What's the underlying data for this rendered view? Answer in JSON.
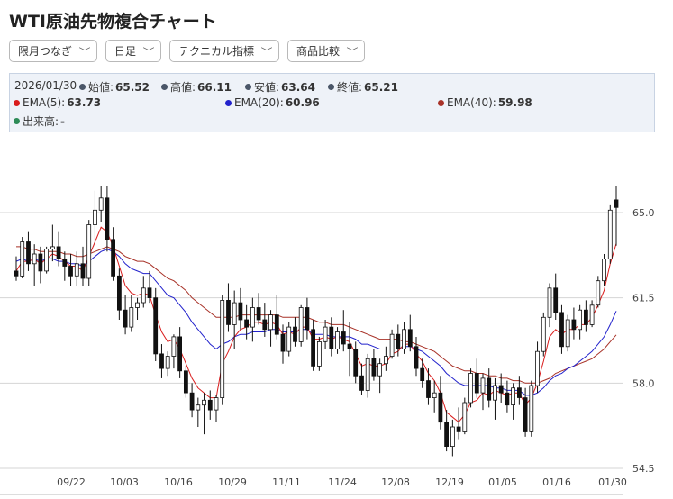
{
  "title": "WTI原油先物複合チャート",
  "toolbar": {
    "period": "限月つなぎ",
    "interval": "日足",
    "technical": "テクニカル指標",
    "compare": "商品比較"
  },
  "info": {
    "date": "2026/01/30",
    "open_label": "始値:",
    "open": "65.52",
    "high_label": "高値:",
    "high": "66.11",
    "low_label": "安値:",
    "low": "63.64",
    "close_label": "終値:",
    "close": "65.21",
    "ema5_label": "EMA(5):",
    "ema5": "63.73",
    "ema20_label": "EMA(20):",
    "ema20": "60.96",
    "ema40_label": "EMA(40):",
    "ema40": "59.98",
    "volume_label": "出来高:",
    "volume": "-"
  },
  "colors": {
    "dot_neutral": "#4a5668",
    "ema5": "#d91c1c",
    "ema20": "#2222cc",
    "ema40": "#a83228",
    "volume": "#2e8b57",
    "candle_up": "#ffffff",
    "candle_down": "#111111"
  },
  "chart_data": {
    "type": "candlestick",
    "y_ticks": [
      "65.0",
      "61.5",
      "58.0",
      "54.5"
    ],
    "y_tick_values": [
      65.0,
      61.5,
      58.0,
      54.5
    ],
    "ylim": [
      54.3,
      68.0
    ],
    "x_ticks": [
      "09/22",
      "10/03",
      "10/16",
      "10/29",
      "11/11",
      "11/24",
      "12/08",
      "12/19",
      "01/05",
      "01/16",
      "01/30"
    ],
    "grid": true,
    "series": [
      {
        "name": "EMA(5)",
        "color": "#d91c1c"
      },
      {
        "name": "EMA(20)",
        "color": "#2222cc"
      },
      {
        "name": "EMA(40)",
        "color": "#a83228"
      }
    ],
    "candles": [
      [
        62.6,
        63.2,
        62.2,
        62.4
      ],
      [
        62.4,
        64.0,
        62.3,
        63.8
      ],
      [
        63.8,
        64.2,
        62.6,
        62.9
      ],
      [
        62.9,
        63.7,
        62.0,
        63.3
      ],
      [
        63.3,
        63.6,
        62.1,
        62.6
      ],
      [
        62.6,
        63.6,
        62.5,
        63.5
      ],
      [
        63.5,
        64.5,
        63.0,
        63.6
      ],
      [
        63.6,
        64.2,
        62.8,
        63.1
      ],
      [
        63.1,
        63.4,
        62.2,
        62.8
      ],
      [
        62.8,
        63.3,
        62.0,
        62.4
      ],
      [
        62.4,
        63.4,
        62.0,
        62.9
      ],
      [
        62.9,
        63.6,
        62.0,
        62.3
      ],
      [
        62.3,
        64.7,
        62.0,
        64.5
      ],
      [
        64.5,
        65.9,
        63.6,
        65.1
      ],
      [
        65.1,
        66.1,
        64.6,
        65.6
      ],
      [
        65.6,
        66.1,
        63.4,
        63.9
      ],
      [
        63.9,
        64.4,
        62.2,
        62.4
      ],
      [
        62.4,
        62.7,
        60.6,
        61.0
      ],
      [
        61.0,
        61.6,
        60.0,
        60.3
      ],
      [
        60.3,
        61.6,
        60.1,
        61.1
      ],
      [
        61.1,
        61.5,
        60.6,
        61.3
      ],
      [
        61.3,
        62.4,
        61.1,
        61.9
      ],
      [
        61.9,
        62.6,
        61.3,
        61.5
      ],
      [
        61.5,
        61.9,
        58.9,
        59.2
      ],
      [
        59.2,
        59.6,
        58.2,
        58.6
      ],
      [
        58.6,
        59.3,
        58.3,
        59.1
      ],
      [
        59.1,
        60.0,
        58.6,
        59.9
      ],
      [
        59.9,
        60.3,
        58.2,
        58.5
      ],
      [
        58.5,
        58.7,
        57.4,
        57.6
      ],
      [
        57.6,
        58.0,
        56.6,
        56.9
      ],
      [
        56.9,
        57.4,
        56.2,
        57.1
      ],
      [
        57.1,
        57.6,
        55.9,
        57.3
      ],
      [
        57.3,
        57.7,
        56.5,
        56.9
      ],
      [
        56.9,
        57.5,
        56.4,
        57.4
      ],
      [
        57.4,
        61.6,
        57.1,
        61.4
      ],
      [
        61.4,
        62.1,
        60.1,
        60.4
      ],
      [
        60.4,
        61.8,
        59.4,
        61.3
      ],
      [
        61.3,
        61.9,
        60.2,
        60.6
      ],
      [
        60.6,
        61.2,
        59.8,
        60.3
      ],
      [
        60.3,
        61.5,
        59.7,
        61.1
      ],
      [
        61.1,
        61.7,
        60.4,
        60.6
      ],
      [
        60.6,
        61.3,
        59.9,
        60.2
      ],
      [
        60.2,
        61.0,
        59.5,
        60.8
      ],
      [
        60.8,
        61.6,
        59.8,
        60.0
      ],
      [
        60.0,
        60.4,
        58.8,
        59.3
      ],
      [
        59.3,
        60.5,
        59.1,
        60.3
      ],
      [
        60.3,
        60.7,
        59.5,
        59.7
      ],
      [
        59.7,
        61.2,
        59.5,
        61.1
      ],
      [
        61.1,
        61.5,
        59.8,
        60.2
      ],
      [
        60.2,
        60.6,
        58.5,
        58.7
      ],
      [
        58.7,
        59.9,
        58.5,
        59.7
      ],
      [
        59.7,
        60.6,
        59.4,
        60.3
      ],
      [
        60.3,
        60.7,
        59.1,
        59.4
      ],
      [
        59.4,
        60.3,
        59.2,
        60.1
      ],
      [
        60.1,
        61.0,
        59.3,
        59.6
      ],
      [
        59.6,
        60.5,
        58.3,
        59.4
      ],
      [
        59.4,
        59.7,
        58.0,
        58.3
      ],
      [
        58.3,
        58.8,
        57.5,
        57.7
      ],
      [
        57.7,
        59.2,
        57.4,
        59.0
      ],
      [
        59.0,
        59.4,
        58.1,
        58.3
      ],
      [
        58.3,
        59.0,
        57.6,
        58.8
      ],
      [
        58.8,
        59.5,
        58.5,
        59.1
      ],
      [
        59.1,
        60.2,
        59.0,
        60.0
      ],
      [
        60.0,
        60.4,
        59.1,
        59.4
      ],
      [
        59.4,
        60.5,
        59.2,
        60.2
      ],
      [
        60.2,
        60.8,
        59.3,
        59.5
      ],
      [
        59.5,
        59.9,
        58.3,
        58.6
      ],
      [
        58.6,
        59.0,
        57.8,
        58.1
      ],
      [
        58.1,
        58.6,
        57.1,
        57.4
      ],
      [
        57.4,
        58.1,
        56.8,
        57.6
      ],
      [
        57.6,
        58.3,
        56.1,
        56.4
      ],
      [
        56.4,
        56.9,
        55.2,
        55.4
      ],
      [
        55.4,
        56.5,
        55.0,
        56.2
      ],
      [
        56.2,
        57.0,
        55.7,
        56.0
      ],
      [
        56.0,
        57.4,
        55.9,
        57.2
      ],
      [
        57.2,
        58.6,
        57.0,
        58.4
      ],
      [
        58.4,
        59.0,
        57.4,
        57.6
      ],
      [
        57.6,
        58.4,
        56.9,
        58.2
      ],
      [
        58.2,
        58.6,
        57.0,
        57.3
      ],
      [
        57.3,
        58.2,
        56.5,
        57.9
      ],
      [
        57.9,
        58.4,
        57.2,
        57.6
      ],
      [
        57.6,
        58.1,
        56.8,
        57.1
      ],
      [
        57.1,
        58.0,
        56.5,
        57.8
      ],
      [
        57.8,
        58.3,
        57.1,
        57.4
      ],
      [
        57.4,
        57.8,
        55.8,
        56.0
      ],
      [
        56.0,
        58.1,
        55.8,
        57.9
      ],
      [
        57.9,
        59.7,
        57.6,
        59.3
      ],
      [
        59.3,
        60.9,
        59.1,
        60.7
      ],
      [
        60.7,
        62.1,
        60.3,
        61.9
      ],
      [
        61.9,
        62.5,
        60.6,
        60.9
      ],
      [
        60.9,
        61.2,
        59.2,
        59.5
      ],
      [
        59.5,
        60.8,
        59.3,
        60.6
      ],
      [
        60.6,
        61.1,
        59.8,
        60.2
      ],
      [
        60.2,
        61.2,
        59.8,
        61.0
      ],
      [
        61.0,
        61.4,
        60.1,
        60.4
      ],
      [
        60.4,
        61.4,
        60.3,
        61.2
      ],
      [
        61.2,
        62.4,
        61.1,
        62.2
      ],
      [
        62.2,
        63.3,
        62.0,
        63.1
      ],
      [
        63.1,
        65.3,
        62.9,
        65.1
      ],
      [
        65.52,
        66.11,
        63.64,
        65.21
      ]
    ],
    "ema5": [
      62.6,
      63.0,
      63.0,
      63.1,
      62.9,
      63.1,
      63.3,
      63.2,
      63.0,
      62.8,
      62.8,
      62.6,
      63.2,
      63.8,
      64.4,
      64.2,
      63.6,
      62.8,
      62.0,
      61.7,
      61.6,
      61.7,
      61.6,
      60.8,
      60.1,
      59.7,
      59.8,
      59.4,
      58.8,
      58.2,
      57.8,
      57.6,
      57.4,
      57.4,
      58.8,
      59.3,
      59.9,
      60.2,
      60.3,
      60.5,
      60.5,
      60.4,
      60.5,
      60.4,
      60.0,
      60.1,
      60.0,
      60.3,
      60.3,
      59.8,
      59.8,
      59.9,
      59.8,
      59.9,
      59.8,
      59.7,
      59.2,
      58.7,
      58.8,
      58.7,
      58.7,
      58.8,
      59.2,
      59.3,
      59.6,
      59.6,
      59.2,
      58.9,
      58.4,
      58.1,
      57.6,
      56.8,
      56.6,
      56.4,
      56.7,
      57.2,
      57.3,
      57.6,
      57.5,
      57.7,
      57.6,
      57.5,
      57.6,
      57.6,
      57.1,
      57.4,
      58.0,
      58.9,
      59.9,
      60.2,
      60.0,
      60.2,
      60.2,
      60.4,
      60.4,
      60.7,
      61.2,
      61.8,
      62.9,
      63.73
    ],
    "ema20": [
      63.0,
      63.1,
      63.0,
      63.1,
      63.0,
      63.1,
      63.1,
      63.0,
      63.0,
      62.9,
      62.9,
      62.8,
      63.0,
      63.2,
      63.4,
      63.5,
      63.4,
      63.2,
      62.9,
      62.7,
      62.6,
      62.5,
      62.5,
      62.2,
      61.9,
      61.6,
      61.5,
      61.2,
      60.9,
      60.5,
      60.2,
      59.9,
      59.6,
      59.4,
      59.6,
      59.7,
      59.9,
      60.0,
      60.0,
      60.1,
      60.1,
      60.1,
      60.2,
      60.2,
      60.1,
      60.1,
      60.1,
      60.2,
      60.2,
      60.0,
      60.0,
      60.0,
      59.9,
      59.9,
      59.9,
      59.9,
      59.8,
      59.6,
      59.6,
      59.5,
      59.4,
      59.4,
      59.4,
      59.4,
      59.5,
      59.5,
      59.4,
      59.3,
      59.1,
      58.9,
      58.7,
      58.4,
      58.2,
      58.0,
      57.9,
      57.9,
      57.9,
      57.9,
      57.9,
      57.8,
      57.8,
      57.7,
      57.7,
      57.7,
      57.5,
      57.5,
      57.6,
      57.8,
      58.1,
      58.3,
      58.4,
      58.6,
      58.7,
      58.9,
      59.1,
      59.3,
      59.6,
      59.9,
      60.4,
      60.96
    ],
    "ema40": [
      63.6,
      63.6,
      63.5,
      63.5,
      63.4,
      63.4,
      63.4,
      63.4,
      63.3,
      63.3,
      63.2,
      63.2,
      63.3,
      63.4,
      63.5,
      63.6,
      63.5,
      63.4,
      63.2,
      63.1,
      63.0,
      63.0,
      62.9,
      62.7,
      62.5,
      62.3,
      62.2,
      62.0,
      61.8,
      61.5,
      61.3,
      61.1,
      60.9,
      60.7,
      60.7,
      60.7,
      60.7,
      60.8,
      60.8,
      60.8,
      60.8,
      60.8,
      60.8,
      60.8,
      60.7,
      60.7,
      60.7,
      60.7,
      60.7,
      60.6,
      60.5,
      60.5,
      60.4,
      60.4,
      60.4,
      60.3,
      60.2,
      60.1,
      60.0,
      59.9,
      59.8,
      59.8,
      59.8,
      59.8,
      59.7,
      59.7,
      59.6,
      59.5,
      59.4,
      59.3,
      59.1,
      58.9,
      58.7,
      58.6,
      58.5,
      58.5,
      58.4,
      58.4,
      58.3,
      58.3,
      58.2,
      58.2,
      58.1,
      58.1,
      58.0,
      58.0,
      58.0,
      58.1,
      58.2,
      58.4,
      58.5,
      58.6,
      58.7,
      58.8,
      58.9,
      59.0,
      59.2,
      59.4,
      59.7,
      59.98
    ]
  }
}
